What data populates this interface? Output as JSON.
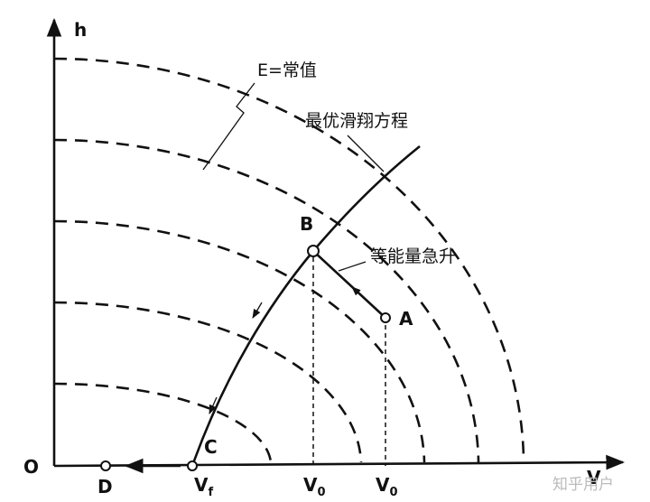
{
  "axis_labels": {
    "vertical": "h",
    "horizontal": "V",
    "origin": "O"
  },
  "annotations": {
    "energy": "E=常值",
    "glide": "最优滑翔方程",
    "climb": "等能量急升"
  },
  "points": {
    "B": "B",
    "A": "A",
    "C": "C",
    "D": "D"
  },
  "x_ticks": [
    {
      "main": "V",
      "sub": "f"
    },
    {
      "main": "V",
      "sub": "0"
    },
    {
      "main": "V",
      "sub": "0"
    }
  ],
  "watermark": "知乎用户"
}
